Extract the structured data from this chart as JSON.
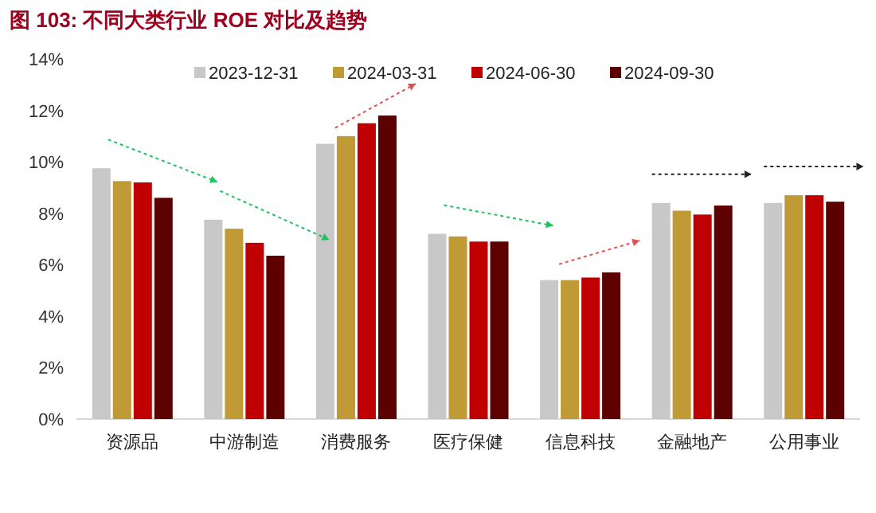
{
  "chart_data": {
    "type": "bar",
    "title": "图 103:  不同大类行业 ROE 对比及趋势",
    "categories": [
      "资源品",
      "中游制造",
      "消费服务",
      "医疗保健",
      "信息科技",
      "金融地产",
      "公用事业"
    ],
    "series": [
      {
        "name": "2023-12-31",
        "color": "#c8c8c8",
        "values": [
          9.75,
          7.75,
          10.7,
          7.2,
          5.4,
          8.4,
          8.4
        ]
      },
      {
        "name": "2024-03-31",
        "color": "#c09a34",
        "values": [
          9.25,
          7.4,
          11.0,
          7.1,
          5.4,
          8.1,
          8.7
        ]
      },
      {
        "name": "2024-06-30",
        "color": "#c00000",
        "values": [
          9.2,
          6.85,
          11.5,
          6.9,
          5.5,
          7.95,
          8.7
        ]
      },
      {
        "name": "2024-09-30",
        "color": "#5c0000",
        "values": [
          8.6,
          6.35,
          11.8,
          6.9,
          5.7,
          8.3,
          8.45
        ]
      }
    ],
    "ylim": [
      0,
      14
    ],
    "yticks": [
      {
        "value": 0,
        "label": "0%"
      },
      {
        "value": 2,
        "label": "2%"
      },
      {
        "value": 4,
        "label": "4%"
      },
      {
        "value": 6,
        "label": "6%"
      },
      {
        "value": 8,
        "label": "8%"
      },
      {
        "value": 10,
        "label": "10%"
      },
      {
        "value": 12,
        "label": "12%"
      },
      {
        "value": 14,
        "label": "14%"
      }
    ],
    "legend": "top",
    "grid": false
  }
}
